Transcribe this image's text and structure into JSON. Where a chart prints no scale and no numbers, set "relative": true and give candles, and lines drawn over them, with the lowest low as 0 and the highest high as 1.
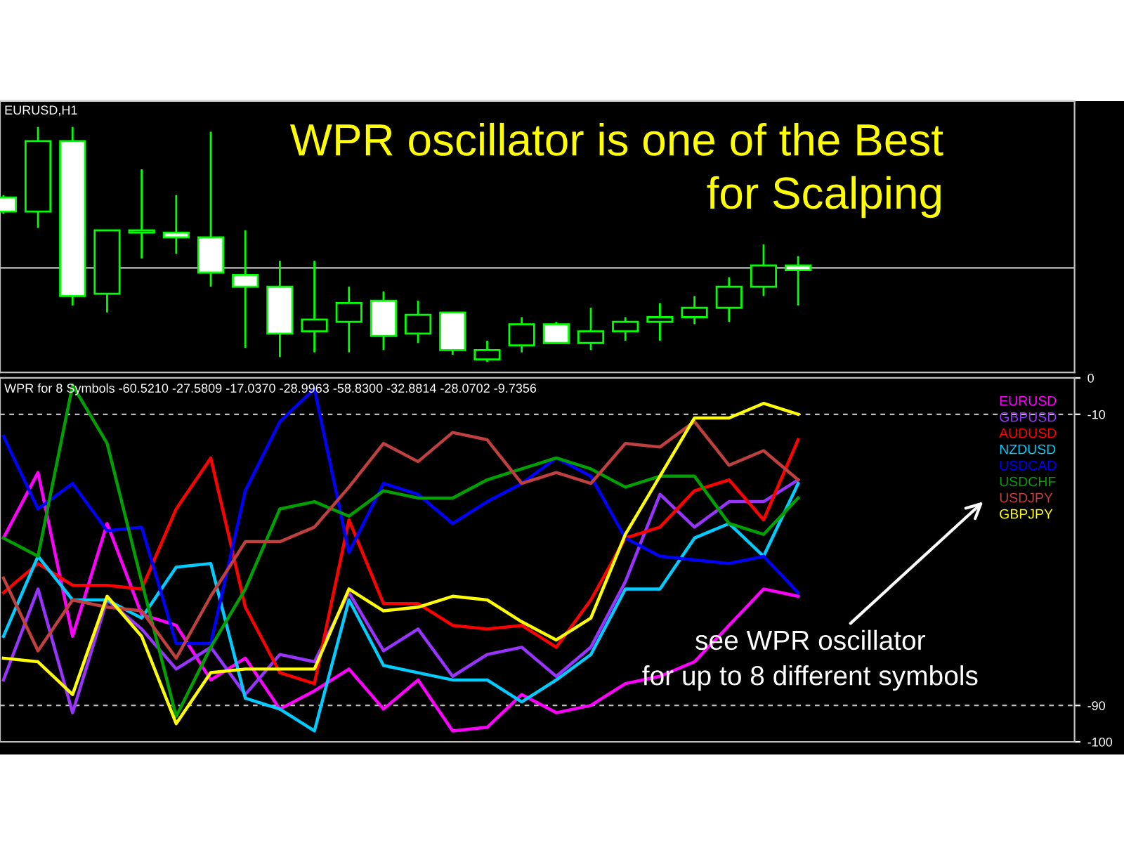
{
  "chart_data": [
    {
      "type": "candlestick",
      "title": "EURUSD,H1",
      "relative": true,
      "tick_labels": false,
      "categories": [
        null,
        null,
        null,
        null,
        null,
        null,
        null,
        null,
        null,
        null,
        null,
        null,
        null,
        null,
        null,
        null,
        null,
        null,
        null,
        null,
        null,
        null,
        null,
        null
      ],
      "ohlc": [
        [
          0.7,
          0.71,
          0.63,
          0.64
        ],
        [
          0.64,
          1.0,
          0.57,
          0.94
        ],
        [
          0.94,
          1.0,
          0.24,
          0.28
        ],
        [
          0.29,
          0.56,
          0.21,
          0.56
        ],
        [
          0.55,
          0.82,
          0.44,
          0.56
        ],
        [
          0.55,
          0.71,
          0.46,
          0.53
        ],
        [
          0.53,
          0.98,
          0.32,
          0.38
        ],
        [
          0.37,
          0.56,
          0.06,
          0.32
        ],
        [
          0.32,
          0.43,
          0.02,
          0.12
        ],
        [
          0.13,
          0.43,
          0.04,
          0.18
        ],
        [
          0.17,
          0.32,
          0.04,
          0.25
        ],
        [
          0.26,
          0.3,
          0.05,
          0.11
        ],
        [
          0.12,
          0.26,
          0.08,
          0.2
        ],
        [
          0.21,
          0.21,
          0.03,
          0.05
        ],
        [
          0.01,
          0.09,
          0.0,
          0.05
        ],
        [
          0.07,
          0.19,
          0.04,
          0.16
        ],
        [
          0.16,
          0.17,
          0.08,
          0.08
        ],
        [
          0.08,
          0.23,
          0.05,
          0.13
        ],
        [
          0.13,
          0.19,
          0.09,
          0.17
        ],
        [
          0.17,
          0.25,
          0.09,
          0.19
        ],
        [
          0.19,
          0.28,
          0.16,
          0.23
        ],
        [
          0.23,
          0.36,
          0.17,
          0.32
        ],
        [
          0.32,
          0.5,
          0.28,
          0.41
        ],
        [
          0.41,
          0.45,
          0.24,
          0.39
        ]
      ],
      "colors": [
        "#ffffff",
        "#000000",
        "#ffffff",
        "#000000",
        "#000000",
        "#ffffff",
        "#ffffff",
        "#ffffff",
        "#ffffff",
        "#000000",
        "#000000",
        "#ffffff",
        "#000000",
        "#ffffff",
        "#000000",
        "#000000",
        "#ffffff",
        "#000000",
        "#000000",
        "#000000",
        "#000000",
        "#000000",
        "#000000",
        "#ffffff"
      ],
      "ref_lines": [
        {
          "axis": "y",
          "value": 0.4,
          "color": "#c0c0c0"
        }
      ],
      "annotations": [
        "WPR oscillator is one of the Best\nfor Scalping"
      ]
    },
    {
      "type": "line",
      "title": "WPR for 8 Symbols -60.5210 -27.5809 -17.0370 -28.9963 -58.8300 -32.8814 -28.0702 -9.7356",
      "tick_labels": "y",
      "legend": "top right",
      "categories": [
        null,
        null,
        null,
        null,
        null,
        null,
        null,
        null,
        null,
        null,
        null,
        null,
        null,
        null,
        null,
        null,
        null,
        null,
        null,
        null,
        null,
        null,
        null,
        null
      ],
      "ylim": [
        -100,
        0
      ],
      "yticks": [
        0,
        -10,
        -90,
        -100
      ],
      "ref_lines": [
        {
          "axis": "y",
          "value": -10,
          "color": "#c0c0c0",
          "line_style": "dashed"
        },
        {
          "axis": "y",
          "value": -90,
          "color": "#c0c0c0",
          "line_style": "dashed"
        }
      ],
      "series": [
        {
          "name": "EURUSD",
          "color": "#ff00ff",
          "values": [
            -44,
            -26,
            -71,
            -40,
            -65,
            -68,
            -83,
            -77,
            -91,
            -86,
            -80,
            -91,
            -83,
            -97,
            -96,
            -87,
            -92,
            -90,
            -84,
            -82,
            -78,
            -68,
            -58,
            -60
          ]
        },
        {
          "name": "GBPUSD",
          "color": "#9933ff",
          "values": [
            -83,
            -58,
            -92,
            -61,
            -69,
            -80,
            -74,
            -87,
            -76,
            -78,
            -59,
            -75,
            -69,
            -82,
            -76,
            -74,
            -82,
            -74,
            -56,
            -32,
            -41,
            -34,
            -34,
            -28
          ]
        },
        {
          "name": "AUDUSD",
          "color": "#ff0000",
          "values": [
            -59,
            -51,
            -57,
            -57,
            -58,
            -36,
            -22,
            -63,
            -81,
            -84,
            -39,
            -62,
            -62,
            -68,
            -69,
            -68,
            -74,
            -61,
            -44,
            -41,
            -31,
            -28,
            -39,
            -17
          ]
        },
        {
          "name": "NZDUSD",
          "color": "#00ccff",
          "values": [
            -71,
            -49,
            -61,
            -61,
            -66,
            -52,
            -51,
            -88,
            -91,
            -97,
            -61,
            -79,
            -81,
            -83,
            -83,
            -89,
            -83,
            -76,
            -58,
            -58,
            -44,
            -40,
            -49,
            -29
          ]
        },
        {
          "name": "USDCAD",
          "color": "#0000ff",
          "values": [
            -16,
            -36,
            -29,
            -42,
            -41,
            -73,
            -73,
            -31,
            -12,
            -3,
            -48,
            -29,
            -32,
            -40,
            -34,
            -29,
            -22,
            -27,
            -44,
            -49,
            -50,
            -51,
            -49,
            -59
          ]
        },
        {
          "name": "USDCHF",
          "color": "#00a000",
          "values": [
            -44,
            -49,
            -2,
            -18,
            -56,
            -93,
            -74,
            -58,
            -36,
            -34,
            -38,
            -31,
            -33,
            -33,
            -28,
            -25,
            -22,
            -25,
            -30,
            -27,
            -27,
            -40,
            -43,
            -33
          ]
        },
        {
          "name": "USDJPY",
          "color": "#c04040",
          "values": [
            -55,
            -75,
            -61,
            -63,
            -64,
            -77,
            -60,
            -45,
            -45,
            -41,
            -30,
            -18,
            -23,
            -15,
            -17,
            -29,
            -26,
            -29,
            -18,
            -19,
            -12,
            -24,
            -20,
            -28
          ]
        },
        {
          "name": "GBPJPY",
          "color": "#ffff00",
          "values": [
            -77,
            -78,
            -87,
            -60,
            -71,
            -95,
            -81,
            -80,
            -80,
            -80,
            -58,
            -64,
            -63,
            -60,
            -61,
            -67,
            -72,
            -66,
            -43,
            -27,
            -11,
            -11,
            -7,
            -10
          ]
        }
      ],
      "annotations": [
        "see WPR oscillator\nfor up to 8 different symbols"
      ]
    }
  ]
}
